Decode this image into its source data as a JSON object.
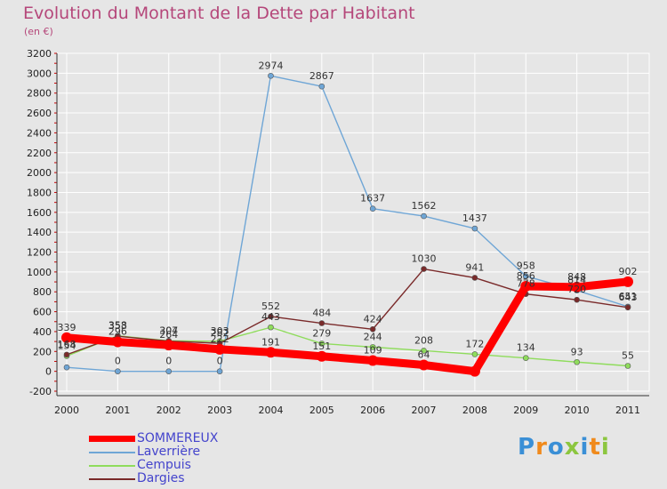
{
  "chart_data": {
    "type": "line",
    "title": "Evolution du Montant de la Dette par Habitant",
    "subtitle": "(en €)",
    "x": [
      "2000",
      "2001",
      "2002",
      "2003",
      "2004",
      "2005",
      "2006",
      "2007",
      "2008",
      "2009",
      "2010",
      "2011"
    ],
    "ylim": [
      -200,
      3200
    ],
    "yticks": [
      -200,
      0,
      200,
      400,
      600,
      800,
      1000,
      1200,
      1400,
      1600,
      1800,
      2000,
      2200,
      2400,
      2600,
      2800,
      3000,
      3200
    ],
    "grid": true,
    "legend_position": "bottom-left",
    "series": [
      {
        "name": "SOMMEREUX",
        "color": "#ff0000",
        "values": [
          339,
          296,
          264,
          222,
          191,
          151,
          109,
          64,
          0,
          856,
          848,
          902
        ],
        "labels": [
          "339",
          "296",
          "264",
          "222",
          "191",
          "151",
          "109",
          "64",
          "",
          "856",
          "848",
          "902"
        ]
      },
      {
        "name": "Laverrière",
        "color": "#6fa6d6",
        "values": [
          40,
          0,
          0,
          0,
          2974,
          2867,
          1637,
          1562,
          1437,
          958,
          814,
          651
        ],
        "labels": [
          "",
          "0",
          "0",
          "0",
          "2974",
          "2867",
          "1637",
          "1562",
          "1437",
          "958",
          "814",
          "651"
        ]
      },
      {
        "name": "Cempuis",
        "color": "#8fdc5c",
        "values": [
          154,
          358,
          307,
          303,
          443,
          279,
          244,
          208,
          172,
          134,
          93,
          55
        ],
        "labels": [
          "154",
          "358",
          "307",
          "303",
          "443",
          "279",
          "244",
          "208",
          "172",
          "134",
          "93",
          "55"
        ]
      },
      {
        "name": "Dargies",
        "color": "#7a2a2a",
        "values": [
          168,
          353,
          304,
          282,
          552,
          484,
          424,
          1030,
          941,
          778,
          720,
          643
        ],
        "labels": [
          "168",
          "353",
          "304",
          "282",
          "552",
          "484",
          "424",
          "1030",
          "941",
          "778",
          "720",
          "643"
        ]
      }
    ]
  },
  "brand": {
    "text": "Proxiti",
    "colors": [
      "#3a8fd6",
      "#f08a1c",
      "#3a8fd6",
      "#8cc63f",
      "#3a8fd6",
      "#f08a1c",
      "#8cc63f"
    ]
  }
}
